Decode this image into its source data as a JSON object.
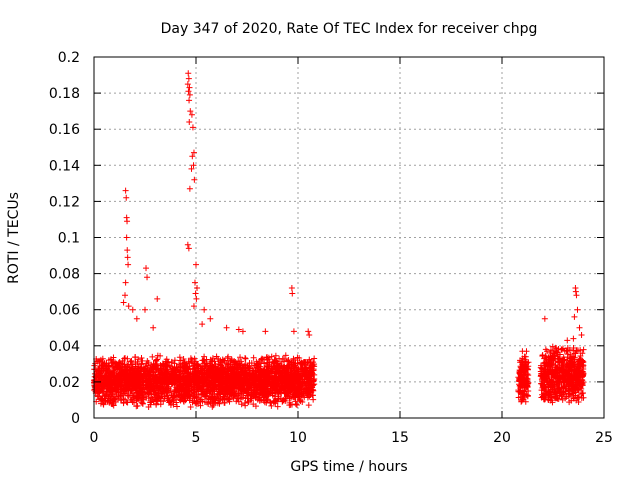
{
  "chart_data": {
    "type": "scatter",
    "title": "Day 347 of 2020, Rate Of TEC Index for receiver chpg",
    "xlabel": "GPS time / hours",
    "ylabel": "ROTI / TECUs",
    "xlim": [
      0,
      25
    ],
    "ylim": [
      0,
      0.2
    ],
    "x_ticks": [
      "0",
      "5",
      "10",
      "15",
      "20",
      "25"
    ],
    "y_ticks": [
      "0",
      "0.02",
      "0.04",
      "0.06",
      "0.08",
      "0.1",
      "0.12",
      "0.14",
      "0.16",
      "0.18",
      "0.2"
    ],
    "grid": true,
    "legend": "none",
    "marker": "plus",
    "series_color": "#ff0000",
    "data_segments": [
      {
        "x_range": [
          0.0,
          10.8
        ],
        "typical_range": [
          0.006,
          0.035
        ]
      },
      {
        "x_range": [
          20.8,
          21.3
        ],
        "typical_range": [
          0.008,
          0.035
        ]
      },
      {
        "x_range": [
          21.9,
          24.0
        ],
        "typical_range": [
          0.006,
          0.04
        ]
      }
    ],
    "notable_points": [
      {
        "x": 1.55,
        "y": 0.126
      },
      {
        "x": 1.58,
        "y": 0.122
      },
      {
        "x": 1.6,
        "y": 0.111
      },
      {
        "x": 1.62,
        "y": 0.109
      },
      {
        "x": 1.6,
        "y": 0.1
      },
      {
        "x": 1.63,
        "y": 0.093
      },
      {
        "x": 1.65,
        "y": 0.089
      },
      {
        "x": 1.67,
        "y": 0.085
      },
      {
        "x": 1.55,
        "y": 0.075
      },
      {
        "x": 1.52,
        "y": 0.068
      },
      {
        "x": 1.45,
        "y": 0.064
      },
      {
        "x": 1.7,
        "y": 0.062
      },
      {
        "x": 1.9,
        "y": 0.06
      },
      {
        "x": 2.1,
        "y": 0.055
      },
      {
        "x": 2.55,
        "y": 0.083
      },
      {
        "x": 2.6,
        "y": 0.078
      },
      {
        "x": 2.5,
        "y": 0.06
      },
      {
        "x": 3.1,
        "y": 0.066
      },
      {
        "x": 2.9,
        "y": 0.05
      },
      {
        "x": 4.62,
        "y": 0.191
      },
      {
        "x": 4.65,
        "y": 0.188
      },
      {
        "x": 4.6,
        "y": 0.185
      },
      {
        "x": 4.68,
        "y": 0.183
      },
      {
        "x": 4.63,
        "y": 0.181
      },
      {
        "x": 4.7,
        "y": 0.179
      },
      {
        "x": 4.66,
        "y": 0.176
      },
      {
        "x": 4.72,
        "y": 0.17
      },
      {
        "x": 4.8,
        "y": 0.168
      },
      {
        "x": 4.67,
        "y": 0.164
      },
      {
        "x": 4.85,
        "y": 0.161
      },
      {
        "x": 4.9,
        "y": 0.147
      },
      {
        "x": 4.82,
        "y": 0.145
      },
      {
        "x": 4.88,
        "y": 0.14
      },
      {
        "x": 4.78,
        "y": 0.138
      },
      {
        "x": 4.92,
        "y": 0.132
      },
      {
        "x": 4.7,
        "y": 0.127
      },
      {
        "x": 4.6,
        "y": 0.096
      },
      {
        "x": 4.65,
        "y": 0.094
      },
      {
        "x": 5.0,
        "y": 0.085
      },
      {
        "x": 4.95,
        "y": 0.075
      },
      {
        "x": 5.05,
        "y": 0.072
      },
      {
        "x": 4.98,
        "y": 0.069
      },
      {
        "x": 5.02,
        "y": 0.066
      },
      {
        "x": 4.9,
        "y": 0.062
      },
      {
        "x": 5.4,
        "y": 0.06
      },
      {
        "x": 5.7,
        "y": 0.055
      },
      {
        "x": 5.3,
        "y": 0.052
      },
      {
        "x": 6.5,
        "y": 0.05
      },
      {
        "x": 7.1,
        "y": 0.049
      },
      {
        "x": 7.3,
        "y": 0.048
      },
      {
        "x": 8.4,
        "y": 0.048
      },
      {
        "x": 9.7,
        "y": 0.072
      },
      {
        "x": 9.72,
        "y": 0.069
      },
      {
        "x": 9.8,
        "y": 0.048
      },
      {
        "x": 10.5,
        "y": 0.048
      },
      {
        "x": 10.55,
        "y": 0.046
      },
      {
        "x": 21.0,
        "y": 0.037
      },
      {
        "x": 21.2,
        "y": 0.037
      },
      {
        "x": 21.1,
        "y": 0.034
      },
      {
        "x": 22.1,
        "y": 0.055
      },
      {
        "x": 22.15,
        "y": 0.038
      },
      {
        "x": 23.2,
        "y": 0.043
      },
      {
        "x": 23.6,
        "y": 0.072
      },
      {
        "x": 23.62,
        "y": 0.07
      },
      {
        "x": 23.65,
        "y": 0.068
      },
      {
        "x": 23.7,
        "y": 0.06
      },
      {
        "x": 23.55,
        "y": 0.056
      },
      {
        "x": 23.8,
        "y": 0.05
      },
      {
        "x": 23.9,
        "y": 0.046
      },
      {
        "x": 23.5,
        "y": 0.044
      }
    ]
  }
}
